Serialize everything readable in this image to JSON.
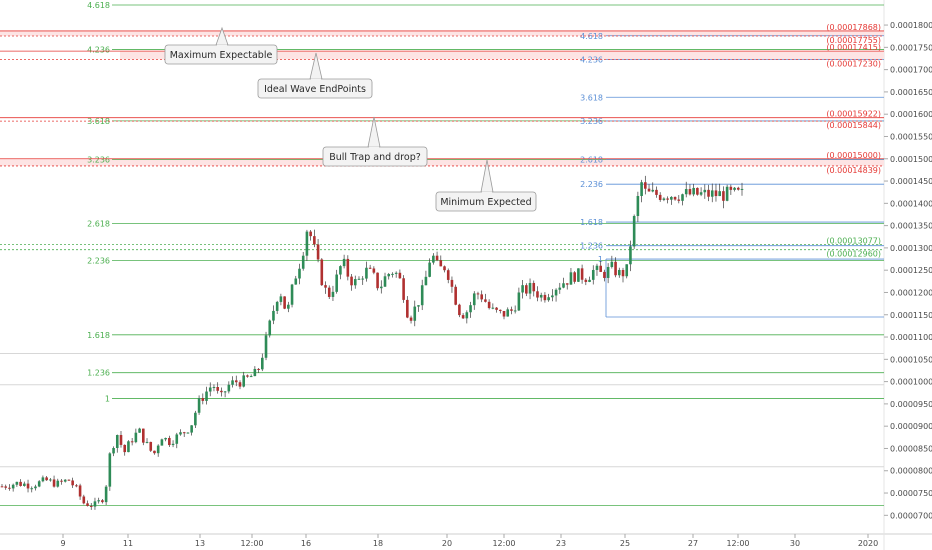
{
  "colors": {
    "bull": "#2e8b57",
    "bear": "#b03030",
    "wick": "#3a3a3a",
    "fib_green": "#4caf50",
    "fib_blue": "#5b8fd6",
    "red": "#e53935",
    "grid": "#d7d7d7"
  },
  "chart_data": {
    "type": "candlestick",
    "y_axis_ticks": [
      "0.00018000",
      "0.00017500",
      "0.00017000",
      "0.00016500",
      "0.00016000",
      "0.00015500",
      "0.00015000",
      "0.00014500",
      "0.00014000",
      "0.00013500",
      "0.00013000",
      "0.00012500",
      "0.00012000",
      "0.00011500",
      "0.00011000",
      "0.00010500",
      "0.00010000",
      "0.00009500",
      "0.00009000",
      "0.00008500",
      "0.00008000",
      "0.00007500",
      "0.00007000"
    ],
    "y_axis_values": [
      0.00018,
      0.000175,
      0.00017,
      0.000165,
      0.00016,
      0.000155,
      0.00015,
      0.000145,
      0.00014,
      0.000135,
      0.00013,
      0.000125,
      0.00012,
      0.000115,
      0.00011,
      0.000105,
      0.0001,
      9.5e-05,
      9e-05,
      8.5e-05,
      8e-05,
      7.5e-05,
      7e-05
    ],
    "ylim": [
      6.85e-05,
      0.0001845
    ],
    "x_axis_ticks": [
      "9",
      "11",
      "13",
      "12:00",
      "16",
      "18",
      "20",
      "12:00",
      "23",
      "25",
      "27",
      "12:00",
      "30",
      "2020"
    ],
    "price_path": [
      [
        0.0,
        7.65e-05
      ],
      [
        0.02,
        7.72e-05
      ],
      [
        0.04,
        7.68e-05
      ],
      [
        0.06,
        7.78e-05
      ],
      [
        0.075,
        7.7e-05
      ],
      [
        0.09,
        7.8e-05
      ],
      [
        0.1,
        7.6e-05
      ],
      [
        0.11,
        7.28e-05
      ],
      [
        0.125,
        7.22e-05
      ],
      [
        0.135,
        7.35e-05
      ],
      [
        0.14,
        7.6e-05
      ],
      [
        0.145,
        8.3e-05
      ],
      [
        0.155,
        8.85e-05
      ],
      [
        0.165,
        8.4e-05
      ],
      [
        0.175,
        8.7e-05
      ],
      [
        0.185,
        8.9e-05
      ],
      [
        0.195,
        8.6e-05
      ],
      [
        0.205,
        8.35e-05
      ],
      [
        0.215,
        8.8e-05
      ],
      [
        0.225,
        8.65e-05
      ],
      [
        0.24,
        8.8e-05
      ],
      [
        0.255,
        9e-05
      ],
      [
        0.265,
        9.5e-05
      ],
      [
        0.275,
        9.75e-05
      ],
      [
        0.285,
        9.95e-05
      ],
      [
        0.295,
        9.6e-05
      ],
      [
        0.305,
        9.9e-05
      ],
      [
        0.315,
        0.0001
      ],
      [
        0.325,
        0.0001
      ],
      [
        0.335,
        0.000101
      ],
      [
        0.345,
        0.000102
      ],
      [
        0.355,
        0.000108
      ],
      [
        0.365,
        0.000115
      ],
      [
        0.375,
        0.000121
      ],
      [
        0.385,
        0.000115
      ],
      [
        0.395,
        0.000123
      ],
      [
        0.405,
        0.000128
      ],
      [
        0.413,
        0.000135
      ],
      [
        0.42,
        0.000131
      ],
      [
        0.43,
        0.000124
      ],
      [
        0.44,
        0.000119
      ],
      [
        0.45,
        0.000122
      ],
      [
        0.46,
        0.000127
      ],
      [
        0.47,
        0.000123
      ],
      [
        0.48,
        0.000122
      ],
      [
        0.49,
        0.000125
      ],
      [
        0.5,
        0.000124
      ],
      [
        0.51,
        0.000121
      ],
      [
        0.52,
        0.000124
      ],
      [
        0.53,
        0.000125
      ],
      [
        0.54,
        0.000122
      ],
      [
        0.55,
        0.000114
      ],
      [
        0.56,
        0.000117
      ],
      [
        0.57,
        0.000121
      ],
      [
        0.58,
        0.000129
      ],
      [
        0.59,
        0.000125
      ],
      [
        0.6,
        0.000126
      ],
      [
        0.61,
        0.00012
      ],
      [
        0.62,
        0.000115
      ],
      [
        0.63,
        0.000116
      ],
      [
        0.64,
        0.00012
      ],
      [
        0.65,
        0.000119
      ],
      [
        0.66,
        0.000116
      ],
      [
        0.675,
        0.000115
      ],
      [
        0.69,
        0.000116
      ],
      [
        0.7,
        0.00012
      ],
      [
        0.715,
        0.000121
      ],
      [
        0.73,
        0.000119
      ],
      [
        0.745,
        0.000121
      ],
      [
        0.76,
        0.0001225
      ],
      [
        0.775,
        0.000124
      ],
      [
        0.79,
        0.0001235
      ],
      [
        0.8,
        0.000125
      ],
      [
        0.81,
        0.000124
      ],
      [
        0.825,
        0.0001255
      ],
      [
        0.835,
        0.000124
      ],
      [
        0.845,
        0.000125
      ],
      [
        0.85,
        0.000132
      ],
      [
        0.858,
        0.00014
      ],
      [
        0.865,
        0.000145
      ],
      [
        0.87,
        0.000142
      ]
    ]
  },
  "fib_left": [
    {
      "label": "4.618",
      "value": 0.0001845
    },
    {
      "label": "4.236",
      "value": 0.0001745
    },
    {
      "label": "3.618",
      "value": 0.0001585
    },
    {
      "label": "3.236",
      "value": 0.0001498
    },
    {
      "label": "2.618",
      "value": 0.0001355
    },
    {
      "label": "2.236",
      "value": 0.0001272
    },
    {
      "label": "1.618",
      "value": 0.0001105
    },
    {
      "label": "1.236",
      "value": 0.000102
    },
    {
      "label": "1",
      "value": 9.62e-05
    }
  ],
  "fib_right": [
    {
      "label": "4.618",
      "value": 0.0001776
    },
    {
      "label": "4.236",
      "value": 0.0001723
    },
    {
      "label": "3.618",
      "value": 0.0001638
    },
    {
      "label": "3.236",
      "value": 0.0001585
    },
    {
      "label": "2.618",
      "value": 0.0001498
    },
    {
      "label": "2.236",
      "value": 0.0001443
    },
    {
      "label": "1.618",
      "value": 0.0001358
    },
    {
      "label": "1.236",
      "value": 0.0001305
    },
    {
      "label": "1",
      "value": 0.0001275
    }
  ],
  "red_levels": [
    {
      "label": "(0.00017868)",
      "value": 0.00017868
    },
    {
      "label": "(0.00017755)",
      "value": 0.00017755
    },
    {
      "label": "(0.00017415)",
      "value": 0.00017415
    },
    {
      "label": "(0.00017230)",
      "value": 0.0001723
    },
    {
      "label": "(0.00015922)",
      "value": 0.00015922
    },
    {
      "label": "(0.00015844)",
      "value": 0.00015844
    },
    {
      "label": "(0.00015000)",
      "value": 0.00015
    },
    {
      "label": "(0.00014839)",
      "value": 0.00014839
    }
  ],
  "green_levels": [
    {
      "label": "(0.00013077)",
      "value": 0.00013077
    },
    {
      "label": "(0.00012960)",
      "value": 0.0001296
    }
  ],
  "annotations": [
    {
      "text": "Maximum Expectable"
    },
    {
      "text": "Ideal Wave EndPoints"
    },
    {
      "text": "Bull Trap and drop?"
    },
    {
      "text": "Minimum Expected"
    }
  ]
}
